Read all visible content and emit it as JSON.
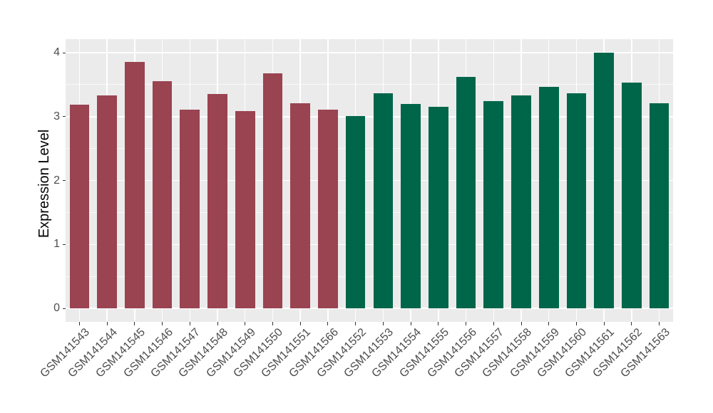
{
  "chart_data": {
    "type": "bar",
    "title": "",
    "xlabel": "",
    "ylabel": "Expression Level",
    "categories": [
      "GSM141543",
      "GSM141544",
      "GSM141545",
      "GSM141546",
      "GSM141547",
      "GSM141548",
      "GSM141549",
      "GSM141550",
      "GSM141551",
      "GSM141566",
      "GSM141552",
      "GSM141553",
      "GSM141554",
      "GSM141555",
      "GSM141556",
      "GSM141557",
      "GSM141558",
      "GSM141559",
      "GSM141560",
      "GSM141561",
      "GSM141562",
      "GSM141563"
    ],
    "values": [
      3.19,
      3.33,
      3.85,
      3.55,
      3.11,
      3.35,
      3.09,
      3.68,
      3.21,
      3.11,
      3.01,
      3.37,
      3.2,
      3.15,
      3.62,
      3.24,
      3.33,
      3.47,
      3.37,
      4.0,
      3.53,
      3.21
    ],
    "groups": [
      {
        "name": "group-red",
        "color": "#9A4351",
        "count": 10
      },
      {
        "name": "group-green",
        "color": "#00664A",
        "count": 12
      }
    ],
    "group_of_bar": [
      0,
      0,
      0,
      0,
      0,
      0,
      0,
      0,
      0,
      0,
      1,
      1,
      1,
      1,
      1,
      1,
      1,
      1,
      1,
      1,
      1,
      1
    ],
    "y_major_ticks": [
      0,
      1,
      2,
      3,
      4
    ],
    "y_minor_ticks": [
      0.5,
      1.5,
      2.5,
      3.5
    ],
    "ylim": [
      -0.21,
      4.21
    ],
    "grid": "on",
    "legend": "none",
    "panel_background": "#EBEBEB",
    "grid_color": "#FFFFFF",
    "axis_text_color": "#4D4D4D",
    "axis_title_color": "#000000"
  }
}
